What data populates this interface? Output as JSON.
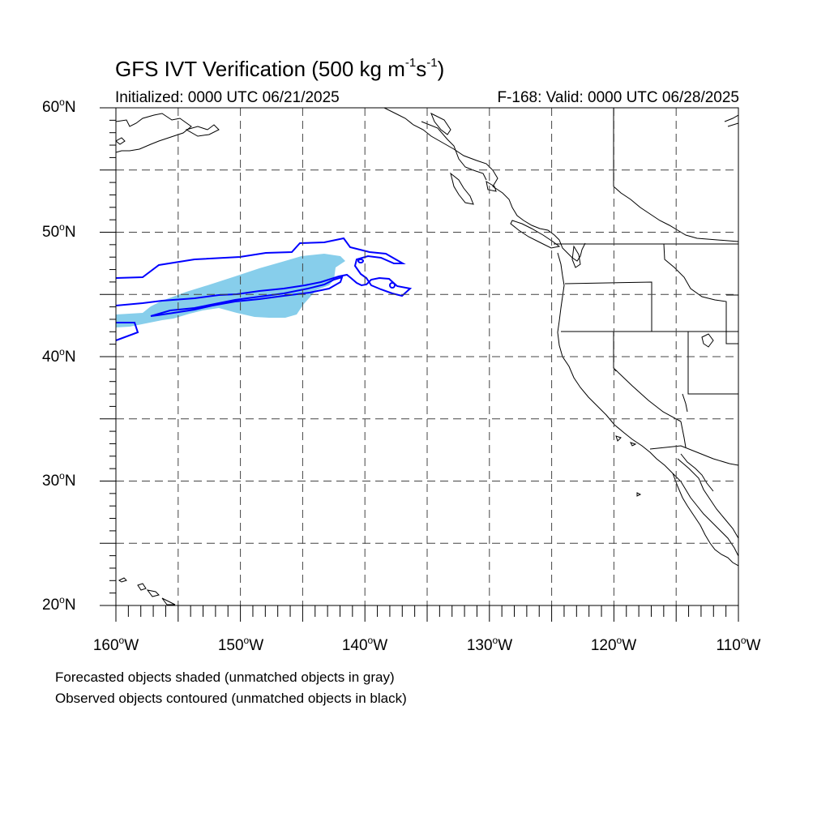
{
  "header": {
    "title_main": "GFS IVT Verification (500 kg m",
    "title_exp1": "-1",
    "title_mid": "s",
    "title_exp2": "-1",
    "title_end": ")",
    "initialized": "Initialized: 0000 UTC 06/21/2025",
    "valid": "F-168: Valid: 0000 UTC 06/28/2025"
  },
  "map": {
    "lon_range": [
      -160,
      -110
    ],
    "lat_range": [
      20,
      60
    ],
    "lat_labels": [
      {
        "deg": "60",
        "hem": "N"
      },
      {
        "deg": "50",
        "hem": "N"
      },
      {
        "deg": "40",
        "hem": "N"
      },
      {
        "deg": "30",
        "hem": "N"
      },
      {
        "deg": "20",
        "hem": "N"
      }
    ],
    "lon_labels": [
      {
        "deg": "160",
        "hem": "W"
      },
      {
        "deg": "150",
        "hem": "W"
      },
      {
        "deg": "140",
        "hem": "W"
      },
      {
        "deg": "130",
        "hem": "W"
      },
      {
        "deg": "120",
        "hem": "W"
      },
      {
        "deg": "110",
        "hem": "W"
      }
    ],
    "gridlines": "dashed every 5°",
    "colors": {
      "forecast_fill": "#87ceeb",
      "observed_contour": "#0000ff",
      "coastline": "#000000",
      "grid": "#555555"
    }
  },
  "legend": {
    "line1": "Forecasted objects shaded (unmatched objects in gray)",
    "line2": "Observed objects contoured (unmatched objects in black)"
  }
}
